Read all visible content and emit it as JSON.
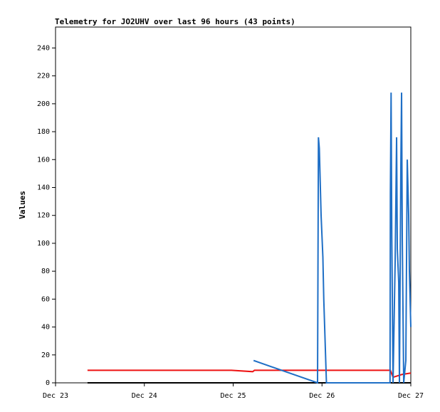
{
  "chart_data": {
    "type": "line",
    "title": "Telemetry for JO2UHV over last 96 hours (43 points)",
    "y_label": "Values",
    "xlim": [
      0,
      4
    ],
    "ylim": [
      0,
      255
    ],
    "xticks": [
      {
        "value": 0,
        "label": "Dec 23"
      },
      {
        "value": 1,
        "label": "Dec 24"
      },
      {
        "value": 2,
        "label": "Dec 25"
      },
      {
        "value": 3,
        "label": "Dec 26"
      },
      {
        "value": 4,
        "label": "Dec 27"
      }
    ],
    "yticks": [
      0,
      20,
      40,
      60,
      80,
      100,
      120,
      140,
      160,
      180,
      200,
      220,
      240
    ],
    "series": [
      {
        "color": "#000000",
        "x": [
          0.36,
          4.0
        ],
        "values": [
          0,
          0
        ]
      },
      {
        "color": "#ee1111",
        "x": [
          0.36,
          1.98,
          2.22,
          2.24,
          3.77,
          3.8,
          3.9,
          4.0
        ],
        "values": [
          9,
          9,
          8,
          9,
          9,
          4,
          6,
          7
        ]
      },
      {
        "color": "#1f6fc6",
        "x": [
          2.23,
          2.95,
          2.96,
          2.97,
          2.99,
          3.01,
          3.02,
          3.04,
          3.05,
          3.766,
          3.77,
          3.778,
          3.786,
          3.8,
          3.824,
          3.84,
          3.848,
          3.864,
          3.872,
          3.888,
          3.896,
          3.904,
          3.92,
          3.944,
          3.96,
          3.976,
          3.984,
          4.0
        ],
        "values": [
          16,
          0,
          176,
          168,
          120,
          90,
          60,
          20,
          0,
          0,
          136,
          208,
          104,
          0,
          88,
          176,
          96,
          72,
          0,
          156,
          208,
          104,
          0,
          16,
          160,
          120,
          80,
          40
        ]
      }
    ]
  }
}
